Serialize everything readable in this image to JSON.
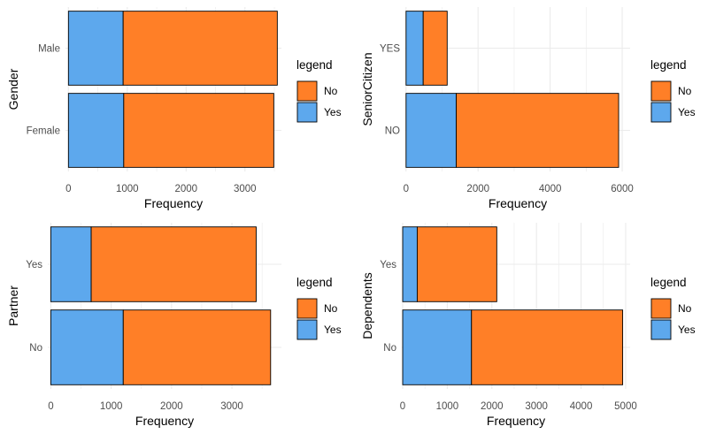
{
  "colors": {
    "no": "#FF7F27",
    "yes": "#5DA8ED",
    "grid": "#ebebeb",
    "stroke": "#000000"
  },
  "chart_data": [
    {
      "type": "bar",
      "orientation": "horizontal",
      "stacked": true,
      "categories": [
        "Female",
        "Male"
      ],
      "series": [
        {
          "name": "Yes",
          "values": [
            940,
            930
          ]
        },
        {
          "name": "No",
          "values": [
            2550,
            2620
          ]
        }
      ],
      "xlabel": "Frequency",
      "ylabel": "Gender",
      "xticks": [
        "0",
        "1000",
        "2000",
        "3000"
      ],
      "xlim": [
        -50,
        3620
      ],
      "legend_title": "legend",
      "legend_position": "right",
      "grid": true
    },
    {
      "type": "bar",
      "orientation": "horizontal",
      "stacked": true,
      "categories": [
        "NO",
        "YES"
      ],
      "series": [
        {
          "name": "Yes",
          "values": [
            1393,
            476
          ]
        },
        {
          "name": "No",
          "values": [
            4508,
            666
          ]
        }
      ],
      "xlabel": "Frequency",
      "ylabel": "SeniorCitizen",
      "xticks": [
        "0",
        "2000",
        "4000",
        "6000"
      ],
      "xlim": [
        -20,
        6220
      ],
      "legend_title": "legend",
      "legend_position": "right",
      "grid": true
    },
    {
      "type": "bar",
      "orientation": "horizontal",
      "stacked": true,
      "categories": [
        "No",
        "Yes"
      ],
      "series": [
        {
          "name": "Yes",
          "values": [
            1200,
            669
          ]
        },
        {
          "name": "No",
          "values": [
            2441,
            2733
          ]
        }
      ],
      "xlabel": "Frequency",
      "ylabel": "Partner",
      "xticks": [
        "0",
        "1000",
        "2000",
        "3000"
      ],
      "xlim": [
        -50,
        3820
      ],
      "legend_title": "legend",
      "legend_position": "right",
      "grid": true
    },
    {
      "type": "bar",
      "orientation": "horizontal",
      "stacked": true,
      "categories": [
        "No",
        "Yes"
      ],
      "series": [
        {
          "name": "Yes",
          "values": [
            1543,
            326
          ]
        },
        {
          "name": "No",
          "values": [
            3390,
            1784
          ]
        }
      ],
      "xlabel": "Frequency",
      "ylabel": "Dependents",
      "xticks": [
        "0",
        "1000",
        "2000",
        "3000",
        "4000",
        "5000"
      ],
      "xlim": [
        -20,
        5100
      ],
      "legend_title": "legend",
      "legend_position": "right",
      "grid": true
    }
  ]
}
